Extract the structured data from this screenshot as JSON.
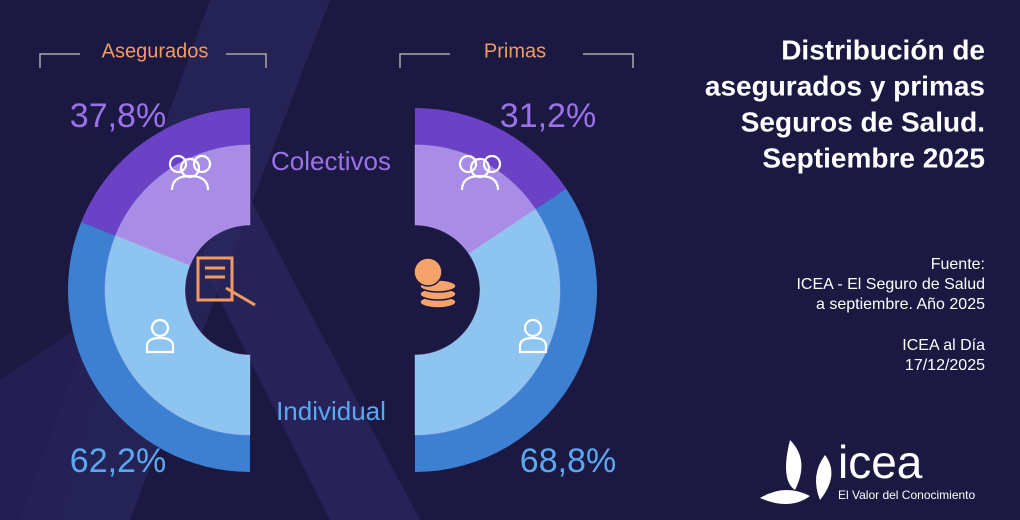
{
  "chart_data": {
    "type": "half-donut",
    "title": [
      "Distribución de",
      "asegurados y primas",
      "Seguros de Salud.",
      "Septiembre 2025"
    ],
    "categories": [
      "Colectivos",
      "Individual"
    ],
    "colors": [
      "#6b42c6",
      "#3d80d2"
    ],
    "inner_colors": [
      "#a88ce6",
      "#8ec4f0"
    ],
    "label_colors": [
      "#9b72ea",
      "#5aa8f0"
    ],
    "series": [
      {
        "name": "Asegurados",
        "values": [
          37.8,
          62.2
        ],
        "value_labels": [
          "37,8%",
          "62,2%"
        ]
      },
      {
        "name": "Primas",
        "values": [
          31.2,
          68.8
        ],
        "value_labels": [
          "31,2%",
          "68,8%"
        ]
      }
    ]
  },
  "source": [
    "Fuente:",
    "ICEA - El Seguro de Salud",
    "a septiembre. Año 2025"
  ],
  "note": [
    "ICEA al Día",
    "17/12/2025"
  ],
  "logo": {
    "name": "icea",
    "tagline": "El Valor del Conocimiento"
  }
}
